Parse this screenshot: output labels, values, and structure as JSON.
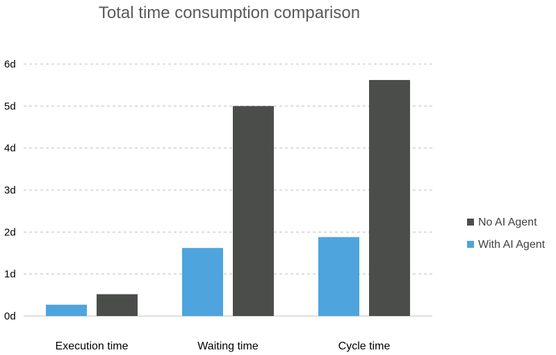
{
  "chart_data": {
    "type": "bar",
    "title": "Total time consumption comparison",
    "categories": [
      "Execution time",
      "Waiting time",
      "Cycle time"
    ],
    "series": [
      {
        "name": "With AI Agent",
        "color": "#4EA4DD",
        "values": [
          0.27,
          1.62,
          1.88
        ]
      },
      {
        "name": "No AI Agent",
        "color": "#4B4D4B",
        "values": [
          0.52,
          5.0,
          5.62
        ]
      }
    ],
    "y_ticks": [
      {
        "value": 0,
        "label": "0d"
      },
      {
        "value": 1,
        "label": "1d"
      },
      {
        "value": 2,
        "label": "2d"
      },
      {
        "value": 3,
        "label": "3d"
      },
      {
        "value": 4,
        "label": "4d"
      },
      {
        "value": 5,
        "label": "5d"
      },
      {
        "value": 6,
        "label": "6d"
      }
    ],
    "ylim": [
      0,
      6
    ],
    "xlabel": "",
    "ylabel": "",
    "grid": true,
    "legend": {
      "position": "right",
      "entries": [
        "No AI Agent",
        "With AI Agent"
      ]
    }
  }
}
